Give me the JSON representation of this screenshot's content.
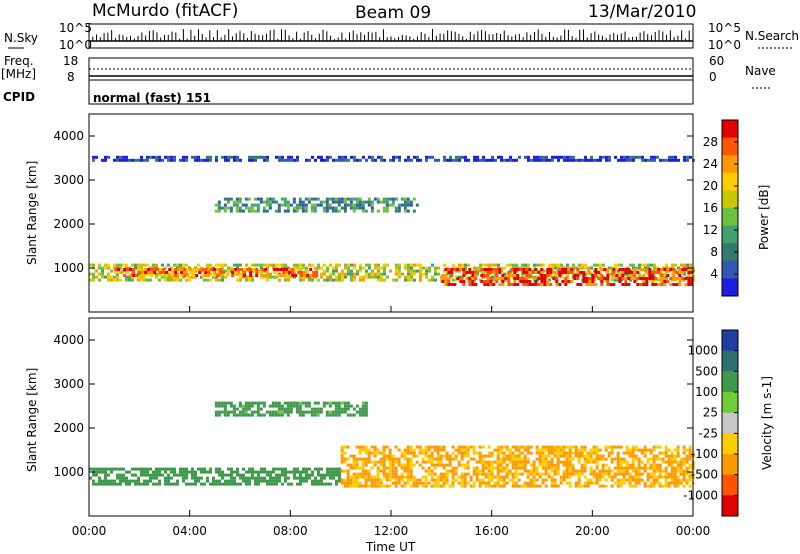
{
  "header": {
    "station": "McMurdo (fitACF)",
    "beam": "Beam 09",
    "date": "13/Mar/2010"
  },
  "top_panels": {
    "nsky_label": "N.Sky",
    "nsearch_label": "N.Search",
    "noise_ticks": [
      "10^5",
      "10^0"
    ],
    "freq_label_1": "Freq.",
    "freq_label_2": "[MHz]",
    "freq_ticks": [
      "18",
      "8"
    ],
    "nave_label": "Nave",
    "nave_ticks": [
      "60",
      "0"
    ],
    "cpid_label": "CPID",
    "cpid_value": "normal (fast) 151"
  },
  "chart_data": [
    {
      "type": "heatmap",
      "title": "",
      "ylabel": "Slant Range [km]",
      "yticks": [
        "4000",
        "3000",
        "2000",
        "1000"
      ],
      "colorbar_label": "Power [dB]",
      "colorbar_ticks": [
        "28",
        "24",
        "20",
        "16",
        "12",
        "8",
        "4"
      ],
      "colorbar_colors": [
        "#e00000",
        "#ff5500",
        "#ff9900",
        "#ffcc00",
        "#c8c800",
        "#6fc040",
        "#40a070",
        "#337a70",
        "#3358b0",
        "#1e1ee0"
      ],
      "ylim": [
        0,
        4500
      ],
      "xlim": [
        "00:00",
        "24:00"
      ],
      "bands": [
        {
          "x": [
            0,
            24
          ],
          "y": [
            700,
            1100
          ],
          "level": 0.55
        },
        {
          "x": [
            1,
            9
          ],
          "y": [
            800,
            1000
          ],
          "level": 0.8
        },
        {
          "x": [
            14,
            24
          ],
          "y": [
            650,
            1000
          ],
          "level": 0.9
        },
        {
          "x": [
            5,
            13
          ],
          "y": [
            2300,
            2600
          ],
          "level": 0.3
        },
        {
          "x": [
            0,
            24
          ],
          "y": [
            3450,
            3550
          ],
          "level": 0.1
        }
      ]
    },
    {
      "type": "heatmap",
      "title": "",
      "xlabel": "Time UT",
      "ylabel": "Slant Range [km]",
      "yticks": [
        "4000",
        "3000",
        "2000",
        "1000"
      ],
      "xticks": [
        "00:00",
        "04:00",
        "08:00",
        "12:00",
        "16:00",
        "20:00",
        "00:00"
      ],
      "colorbar_label": "Velocity [m s-1]",
      "colorbar_ticks": [
        "1000",
        "500",
        "100",
        "25",
        "-25",
        "-100",
        "-500",
        "-1000"
      ],
      "colorbar_colors": [
        "#1e3ea0",
        "#2f6f70",
        "#3f9a4c",
        "#6fcc3a",
        "#c8c8c8",
        "#ffcc00",
        "#ff9900",
        "#ff5500",
        "#e00000"
      ],
      "ylim": [
        0,
        4500
      ],
      "xlim": [
        "00:00",
        "24:00"
      ],
      "bands": [
        {
          "x": [
            0,
            10
          ],
          "y": [
            700,
            1100
          ],
          "velocity": 300
        },
        {
          "x": [
            10,
            24
          ],
          "y": [
            700,
            1600
          ],
          "velocity": -120
        },
        {
          "x": [
            5,
            11
          ],
          "y": [
            2300,
            2600
          ],
          "velocity": 200
        }
      ]
    }
  ]
}
